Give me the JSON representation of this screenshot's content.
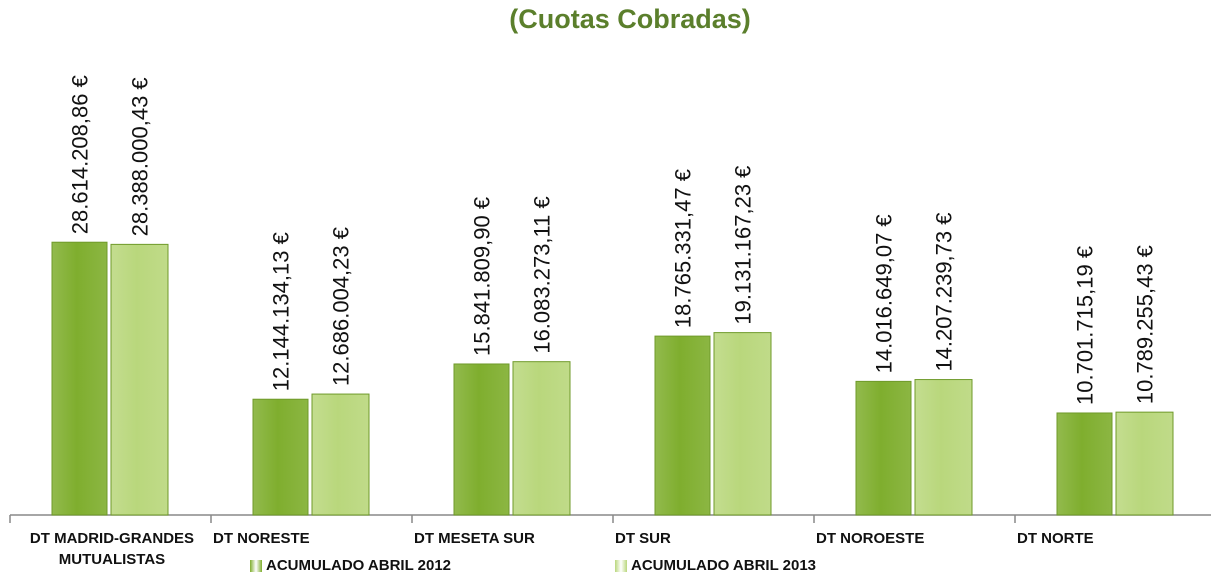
{
  "chart_data": {
    "type": "bar",
    "title": "(Cuotas Cobradas)",
    "categories": [
      "DT MADRID-GRANDES MUTUALISTAS",
      "DT NORESTE",
      "DT MESETA SUR",
      "DT SUR",
      "DT NOROESTE",
      "DT NORTE"
    ],
    "series": [
      {
        "name": "ACUMULADO ABRIL 2012",
        "color": "#7fae2e",
        "values": [
          28614208.86,
          12144134.13,
          15841809.9,
          18765331.47,
          14016649.07,
          10701715.19
        ],
        "value_labels": [
          "28.614.208,86 €",
          "12.144.134,13 €",
          "15.841.809,90 €",
          "18.765.331,47 €",
          "14.016.649,07 €",
          "10.701.715,19 €"
        ]
      },
      {
        "name": "ACUMULADO ABRIL 2013",
        "color": "#b9d77c",
        "values": [
          28388000.43,
          12686004.23,
          16083273.11,
          19131167.23,
          14207239.73,
          10789255.43
        ],
        "value_labels": [
          "28.388.000,43 €",
          "12.686.004,23 €",
          "16.083.273,11 €",
          "19.131.167,23 €",
          "14.207.239,73 €",
          "10.789.255,43 €"
        ]
      }
    ],
    "ylim": [
      0,
      30000000
    ]
  }
}
